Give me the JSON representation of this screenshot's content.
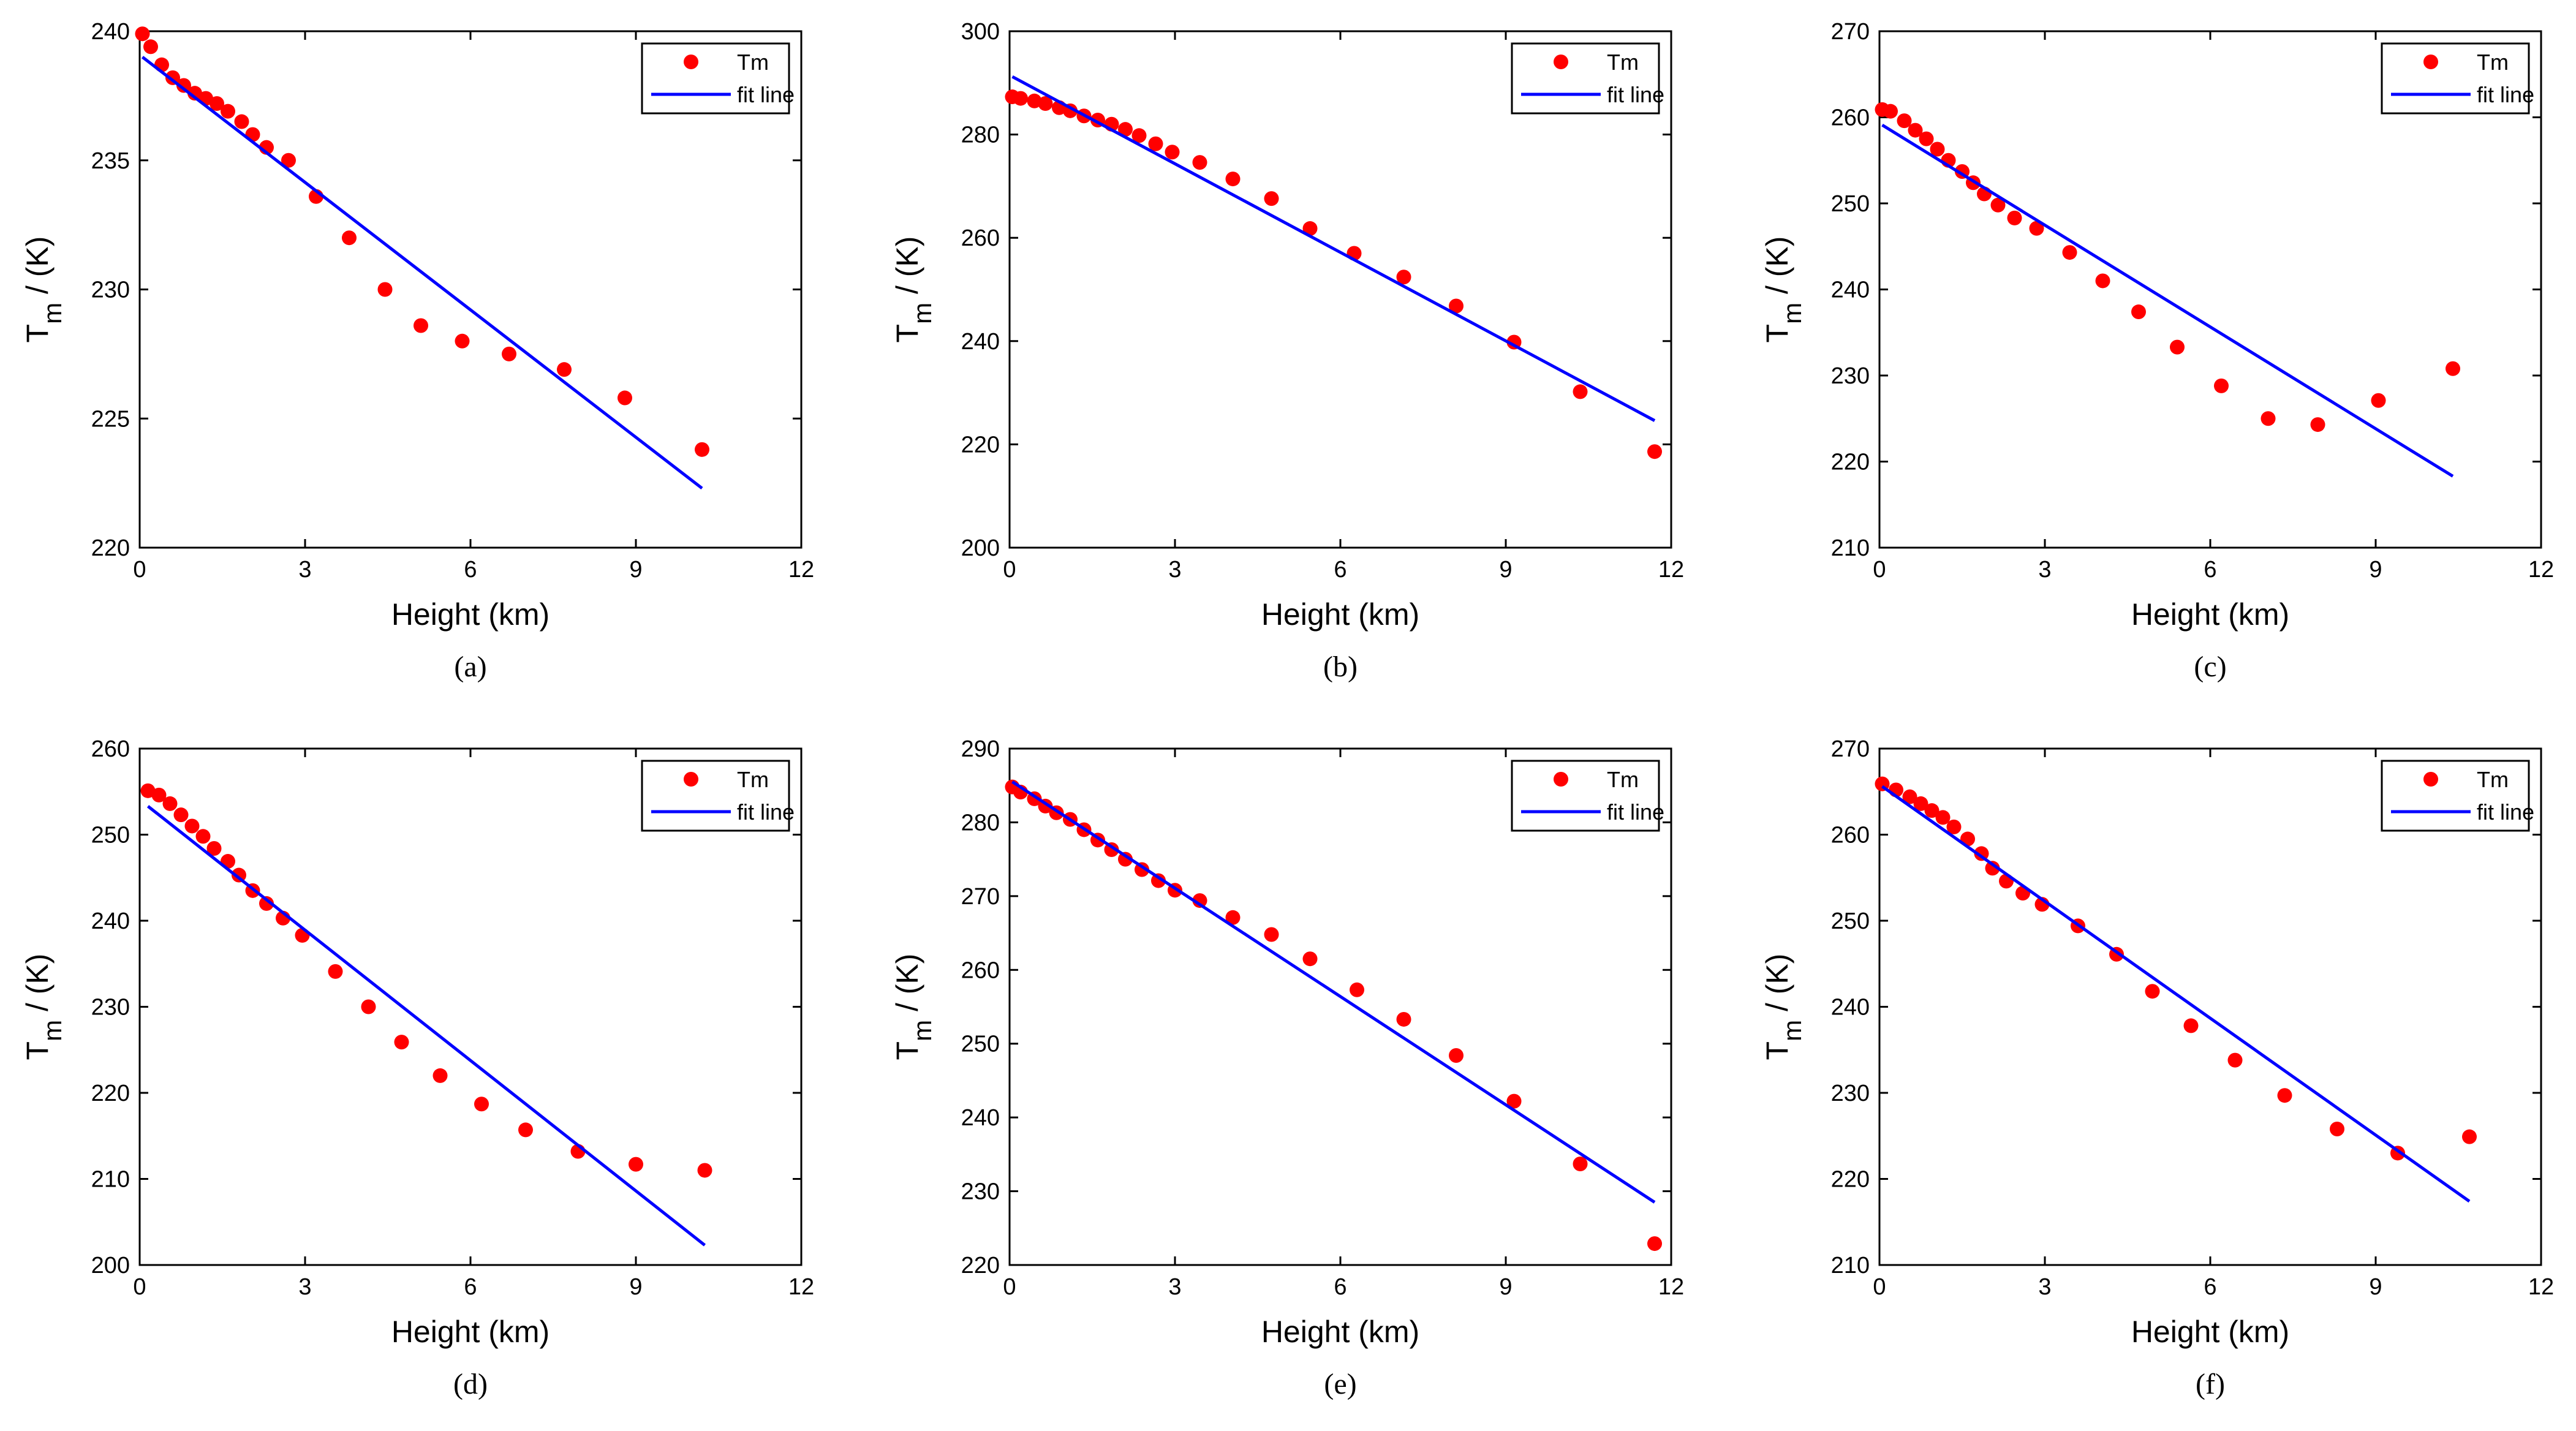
{
  "colors": {
    "marker": "#ff0000",
    "fit_line": "#0000ff",
    "axes": "#000000"
  },
  "legend": {
    "marker_label": "Tm",
    "line_label": "fit line"
  },
  "chart_data": [
    {
      "type": "scatter",
      "panel_label": "(a)",
      "xlabel": "Height (km)",
      "ylabel_main": "T",
      "ylabel_sub": "m",
      "ylabel_unit": " / (K)",
      "xlim": [
        0,
        12
      ],
      "ylim": [
        220,
        240
      ],
      "xticks": [
        0,
        3,
        6,
        9,
        12
      ],
      "yticks": [
        220,
        225,
        230,
        235,
        240
      ],
      "legend_position": "top-right",
      "series": [
        {
          "name": "Tm",
          "kind": "points",
          "points": [
            [
              0.05,
              239.9
            ],
            [
              0.2,
              239.4
            ],
            [
              0.4,
              238.7
            ],
            [
              0.6,
              238.2
            ],
            [
              0.8,
              237.9
            ],
            [
              1.0,
              237.6
            ],
            [
              1.2,
              237.4
            ],
            [
              1.4,
              237.2
            ],
            [
              1.6,
              236.9
            ],
            [
              1.85,
              236.5
            ],
            [
              2.05,
              236.0
            ],
            [
              2.3,
              235.5
            ],
            [
              2.7,
              235.0
            ],
            [
              3.2,
              233.6
            ],
            [
              3.8,
              232.0
            ],
            [
              4.45,
              230.0
            ],
            [
              5.1,
              228.6
            ],
            [
              5.85,
              228.0
            ],
            [
              6.7,
              227.5
            ],
            [
              7.7,
              226.9
            ],
            [
              8.8,
              225.8
            ],
            [
              10.2,
              223.8
            ]
          ]
        },
        {
          "name": "fit line",
          "kind": "line",
          "points": [
            [
              0.05,
              239.0
            ],
            [
              10.2,
              222.3
            ]
          ]
        }
      ]
    },
    {
      "type": "scatter",
      "panel_label": "(b)",
      "xlabel": "Height (km)",
      "ylabel_main": "T",
      "ylabel_sub": "m",
      "ylabel_unit": " / (K)",
      "xlim": [
        0,
        12
      ],
      "ylim": [
        200,
        300
      ],
      "xticks": [
        0,
        3,
        6,
        9,
        12
      ],
      "yticks": [
        200,
        220,
        240,
        260,
        280,
        300
      ],
      "legend_position": "top-right",
      "series": [
        {
          "name": "Tm",
          "kind": "points",
          "points": [
            [
              0.05,
              287.3
            ],
            [
              0.2,
              287.0
            ],
            [
              0.45,
              286.5
            ],
            [
              0.65,
              286.0
            ],
            [
              0.9,
              285.2
            ],
            [
              1.1,
              284.6
            ],
            [
              1.35,
              283.6
            ],
            [
              1.6,
              282.8
            ],
            [
              1.85,
              282.0
            ],
            [
              2.1,
              281.0
            ],
            [
              2.35,
              279.8
            ],
            [
              2.65,
              278.2
            ],
            [
              2.95,
              276.6
            ],
            [
              3.45,
              274.6
            ],
            [
              4.05,
              271.4
            ],
            [
              4.75,
              267.6
            ],
            [
              5.45,
              261.8
            ],
            [
              6.25,
              257.0
            ],
            [
              7.15,
              252.4
            ],
            [
              8.1,
              246.8
            ],
            [
              9.15,
              239.8
            ],
            [
              10.35,
              230.2
            ],
            [
              11.7,
              218.6
            ]
          ]
        },
        {
          "name": "fit line",
          "kind": "line",
          "points": [
            [
              0.05,
              291.2
            ],
            [
              11.7,
              224.6
            ]
          ]
        }
      ]
    },
    {
      "type": "scatter",
      "panel_label": "(c)",
      "xlabel": "Height (km)",
      "ylabel_main": "T",
      "ylabel_sub": "m",
      "ylabel_unit": " / (K)",
      "xlim": [
        0,
        12
      ],
      "ylim": [
        210,
        270
      ],
      "xticks": [
        0,
        3,
        6,
        9,
        12
      ],
      "yticks": [
        210,
        220,
        230,
        240,
        250,
        260,
        270
      ],
      "legend_position": "top-right",
      "series": [
        {
          "name": "Tm",
          "kind": "points",
          "points": [
            [
              0.05,
              260.9
            ],
            [
              0.2,
              260.7
            ],
            [
              0.45,
              259.6
            ],
            [
              0.65,
              258.5
            ],
            [
              0.85,
              257.5
            ],
            [
              1.05,
              256.3
            ],
            [
              1.25,
              255.0
            ],
            [
              1.5,
              253.7
            ],
            [
              1.7,
              252.4
            ],
            [
              1.9,
              251.1
            ],
            [
              2.15,
              249.8
            ],
            [
              2.45,
              248.3
            ],
            [
              2.85,
              247.1
            ],
            [
              3.45,
              244.3
            ],
            [
              4.05,
              241.0
            ],
            [
              4.7,
              237.4
            ],
            [
              5.4,
              233.3
            ],
            [
              6.2,
              228.8
            ],
            [
              7.05,
              225.0
            ],
            [
              7.95,
              224.3
            ],
            [
              9.05,
              227.1
            ],
            [
              10.4,
              230.8
            ]
          ]
        },
        {
          "name": "fit line",
          "kind": "line",
          "points": [
            [
              0.05,
              259.1
            ],
            [
              10.4,
              218.3
            ]
          ]
        }
      ]
    },
    {
      "type": "scatter",
      "panel_label": "(d)",
      "xlabel": "Height (km)",
      "ylabel_main": "T",
      "ylabel_sub": "m",
      "ylabel_unit": " / (K)",
      "xlim": [
        0,
        12
      ],
      "ylim": [
        200,
        260
      ],
      "xticks": [
        0,
        3,
        6,
        9,
        12
      ],
      "yticks": [
        200,
        210,
        220,
        230,
        240,
        250,
        260
      ],
      "legend_position": "top-right",
      "series": [
        {
          "name": "Tm",
          "kind": "points",
          "points": [
            [
              0.15,
              255.1
            ],
            [
              0.35,
              254.6
            ],
            [
              0.55,
              253.6
            ],
            [
              0.75,
              252.3
            ],
            [
              0.95,
              251.0
            ],
            [
              1.15,
              249.8
            ],
            [
              1.35,
              248.4
            ],
            [
              1.6,
              246.9
            ],
            [
              1.8,
              245.3
            ],
            [
              2.05,
              243.5
            ],
            [
              2.3,
              242.0
            ],
            [
              2.6,
              240.3
            ],
            [
              2.95,
              238.3
            ],
            [
              3.55,
              234.1
            ],
            [
              4.15,
              230.0
            ],
            [
              4.75,
              225.9
            ],
            [
              5.45,
              222.0
            ],
            [
              6.2,
              218.7
            ],
            [
              7.0,
              215.7
            ],
            [
              7.95,
              213.2
            ],
            [
              9.0,
              211.7
            ],
            [
              10.25,
              211.0
            ]
          ]
        },
        {
          "name": "fit line",
          "kind": "line",
          "points": [
            [
              0.15,
              253.3
            ],
            [
              10.25,
              202.3
            ]
          ]
        }
      ]
    },
    {
      "type": "scatter",
      "panel_label": "(e)",
      "xlabel": "Height (km)",
      "ylabel_main": "T",
      "ylabel_sub": "m",
      "ylabel_unit": " / (K)",
      "xlim": [
        0,
        12
      ],
      "ylim": [
        220,
        290
      ],
      "xticks": [
        0,
        3,
        6,
        9,
        12
      ],
      "yticks": [
        220,
        230,
        240,
        250,
        260,
        270,
        280,
        290
      ],
      "legend_position": "top-right",
      "series": [
        {
          "name": "Tm",
          "kind": "points",
          "points": [
            [
              0.05,
              284.8
            ],
            [
              0.2,
              284.1
            ],
            [
              0.45,
              283.2
            ],
            [
              0.65,
              282.2
            ],
            [
              0.85,
              281.3
            ],
            [
              1.1,
              280.4
            ],
            [
              1.35,
              279.0
            ],
            [
              1.6,
              277.6
            ],
            [
              1.85,
              276.3
            ],
            [
              2.1,
              275.0
            ],
            [
              2.4,
              273.6
            ],
            [
              2.7,
              272.1
            ],
            [
              3.0,
              270.8
            ],
            [
              3.45,
              269.4
            ],
            [
              4.05,
              267.1
            ],
            [
              4.75,
              264.8
            ],
            [
              5.45,
              261.5
            ],
            [
              6.3,
              257.3
            ],
            [
              7.15,
              253.3
            ],
            [
              8.1,
              248.4
            ],
            [
              9.15,
              242.2
            ],
            [
              10.35,
              233.7
            ],
            [
              11.7,
              222.9
            ]
          ]
        },
        {
          "name": "fit line",
          "kind": "line",
          "points": [
            [
              0.05,
              285.5
            ],
            [
              11.7,
              228.5
            ]
          ]
        }
      ]
    },
    {
      "type": "scatter",
      "panel_label": "(f)",
      "xlabel": "Height (km)",
      "ylabel_main": "T",
      "ylabel_sub": "m",
      "ylabel_unit": " / (K)",
      "xlim": [
        0,
        12
      ],
      "ylim": [
        210,
        270
      ],
      "xticks": [
        0,
        3,
        6,
        9,
        12
      ],
      "yticks": [
        210,
        220,
        230,
        240,
        250,
        260,
        270
      ],
      "legend_position": "top-right",
      "series": [
        {
          "name": "Tm",
          "kind": "points",
          "points": [
            [
              0.05,
              265.9
            ],
            [
              0.3,
              265.2
            ],
            [
              0.55,
              264.4
            ],
            [
              0.75,
              263.6
            ],
            [
              0.95,
              262.8
            ],
            [
              1.15,
              262.0
            ],
            [
              1.35,
              260.9
            ],
            [
              1.6,
              259.5
            ],
            [
              1.85,
              257.8
            ],
            [
              2.05,
              256.1
            ],
            [
              2.3,
              254.6
            ],
            [
              2.6,
              253.2
            ],
            [
              2.95,
              251.9
            ],
            [
              3.6,
              249.4
            ],
            [
              4.3,
              246.1
            ],
            [
              4.95,
              241.8
            ],
            [
              5.65,
              237.8
            ],
            [
              6.45,
              233.8
            ],
            [
              7.35,
              229.7
            ],
            [
              8.3,
              225.8
            ],
            [
              9.4,
              223.0
            ],
            [
              10.7,
              224.9
            ]
          ]
        },
        {
          "name": "fit line",
          "kind": "line",
          "points": [
            [
              0.05,
              265.6
            ],
            [
              10.7,
              217.4
            ]
          ]
        }
      ]
    }
  ]
}
